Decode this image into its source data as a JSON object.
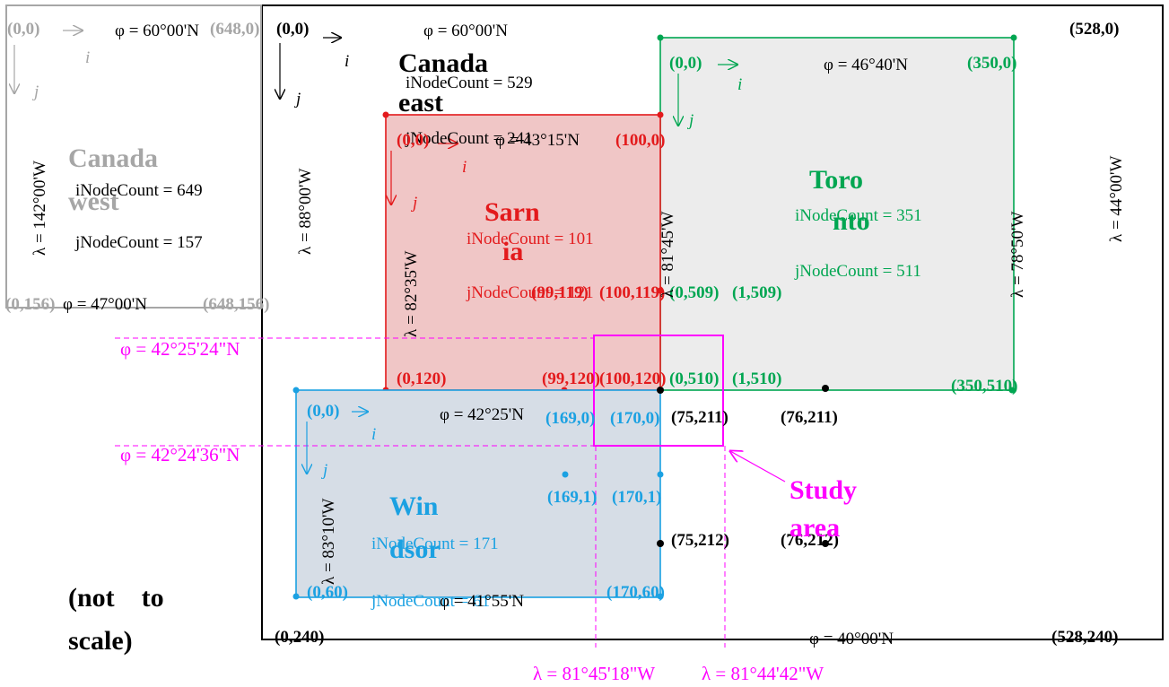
{
  "colors": {
    "black": "#000000",
    "grey": "#a6a6a6",
    "green": "#00a651",
    "red": "#e31a1c",
    "blue": "#1ba1e2",
    "magenta": "#ff00ff",
    "grey_fill": "#ececec",
    "red_fill": "#f0c6c6",
    "blue_fill": "#d6dde6"
  },
  "axis_labels": {
    "i": "i",
    "j": "j"
  },
  "canada_west": {
    "name": "Canada west",
    "name_line1": "Canada",
    "name_line2": "west",
    "lat_top": "φ = 60°00'N",
    "lat_bottom": "φ = 47°00'N",
    "lon_left": "λ = 142°00'W",
    "iNodeCount": "iNodeCount = 649",
    "jNodeCount": "jNodeCount = 157",
    "corner_tl": "(0,0)",
    "corner_tr": "(648,0)",
    "corner_bl": "(0,156)",
    "corner_br": "(648,156)"
  },
  "canada_east": {
    "name_line1": "Canada",
    "name_line2": "east",
    "lat_top": "φ = 60°00'N",
    "lat_bottom": "φ = 40°00'N",
    "lon_left": "λ = 88°00'W",
    "lon_right": "λ = 44°00'W",
    "iNodeCount": "iNodeCount = 529",
    "jNodeCount": "jNodeCount = 241",
    "corner_tl": "(0,0)",
    "corner_tr": "(528,0)",
    "corner_bl": "(0,240)",
    "corner_br": "(528,240)",
    "node_75_211": "(75,211)",
    "node_76_211": "(76,211)",
    "node_75_212": "(75,212)",
    "node_76_212": "(76,212)"
  },
  "sarnia": {
    "name_line1": "Sarn",
    "name_line2": "ia",
    "lat_top": "φ = 43°15'N",
    "lon_left": "λ = 82°35'W",
    "lon_right": "λ = 81°45'W",
    "iNodeCount": "iNodeCount = 101",
    "jNodeCount": "jNodeCount = 121",
    "corner_tl": "(0,0)",
    "corner_tr": "(100,0)",
    "corner_bl": "(0,120)",
    "node_99_119": "(99,119)",
    "node_100_119": "(100,119)",
    "node_99_120": "(99,120)",
    "node_100_120": "(100,120)"
  },
  "toronto": {
    "name_line1": "Toro",
    "name_line2": "nto",
    "lat_top": "φ = 46°40'N",
    "lon_right": "λ = 78°50'W",
    "iNodeCount": "iNodeCount = 351",
    "jNodeCount": "jNodeCount = 511",
    "corner_tl": "(0,0)",
    "corner_tr": "(350,0)",
    "corner_br": "(350,510)",
    "node_0_509": "(0,509)",
    "node_1_509": "(1,509)",
    "node_0_510": "(0,510)",
    "node_1_510": "(1,510)"
  },
  "windsor": {
    "name_line1": "Win",
    "name_line2": "dsor",
    "lat_top": "φ = 42°25'N",
    "lat_bottom": "φ = 41°55'N",
    "lon_left": "λ = 83°10'W",
    "iNodeCount": "iNodeCount = 171",
    "jNodeCount": "jNodeCount = 61",
    "corner_tl": "(0,0)",
    "corner_bl": "(0,60)",
    "corner_br": "(170,60)",
    "node_169_0": "(169,0)",
    "node_170_0": "(170,0)",
    "node_169_1": "(169,1)",
    "node_170_1": "(170,1)"
  },
  "study_area": {
    "label_line1": "Study",
    "label_line2": "area",
    "lat_upper": "φ = 42°25'24\"N",
    "lat_lower": "φ = 42°24'36\"N",
    "lon_left": "λ = 81°45'18\"W",
    "lon_right": "λ = 81°44'42\"W"
  },
  "note_line1": "(not    to",
  "note_line2": "scale)"
}
